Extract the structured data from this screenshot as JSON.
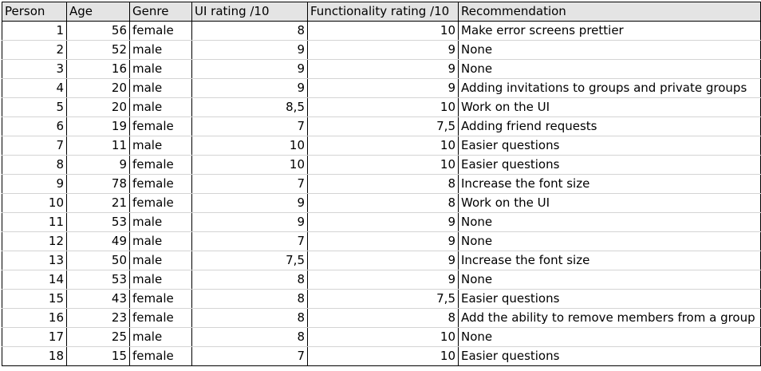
{
  "headers": [
    "Person",
    "Age",
    "Genre",
    "UI rating /10",
    "Functionality rating /10",
    "Recommendation"
  ],
  "rows": [
    [
      "1",
      "56",
      "female",
      "8",
      "10",
      "Make error screens prettier"
    ],
    [
      "2",
      "52",
      "male",
      "9",
      "9",
      "None"
    ],
    [
      "3",
      "16",
      "male",
      "9",
      "9",
      "None"
    ],
    [
      "4",
      "20",
      "male",
      "9",
      "9",
      "Adding invitations to groups and private groups"
    ],
    [
      "5",
      "20",
      "male",
      "8,5",
      "10",
      "Work on the UI"
    ],
    [
      "6",
      "19",
      "female",
      "7",
      "7,5",
      "Adding friend requests"
    ],
    [
      "7",
      "11",
      "male",
      "10",
      "10",
      "Easier questions"
    ],
    [
      "8",
      "9",
      "female",
      "10",
      "10",
      "Easier questions"
    ],
    [
      "9",
      "78",
      "female",
      "7",
      "8",
      "Increase the font size"
    ],
    [
      "10",
      "21",
      "female",
      "9",
      "8",
      "Work on the UI"
    ],
    [
      "11",
      "53",
      "male",
      "9",
      "9",
      "None"
    ],
    [
      "12",
      "49",
      "male",
      "7",
      "9",
      "None"
    ],
    [
      "13",
      "50",
      "male",
      "7,5",
      "9",
      "Increase the font size"
    ],
    [
      "14",
      "53",
      "male",
      "8",
      "9",
      "None"
    ],
    [
      "15",
      "43",
      "female",
      "8",
      "7,5",
      "Easier questions"
    ],
    [
      "16",
      "23",
      "female",
      "8",
      "8",
      "Add the ability to remove members from a group"
    ],
    [
      "17",
      "25",
      "male",
      "8",
      "10",
      "None"
    ],
    [
      "18",
      "15",
      "female",
      "7",
      "10",
      "Easier questions"
    ]
  ]
}
